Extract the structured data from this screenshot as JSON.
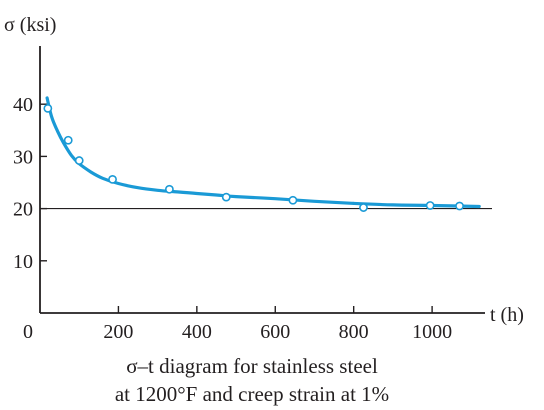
{
  "chart_data": {
    "type": "line",
    "caption": [
      "σ–t diagram for stainless steel",
      "at 1200°F and creep strain at 1%"
    ],
    "xlabel": "t (h)",
    "ylabel": "σ (ksi)",
    "xlim": [
      0,
      1140
    ],
    "ylim": [
      0,
      50
    ],
    "x_ticks": [
      0,
      200,
      400,
      600,
      800,
      1000
    ],
    "y_ticks": [
      10,
      20,
      30,
      40
    ],
    "x_tick_labels": [
      "0",
      "200",
      "400",
      "600",
      "800",
      "1000"
    ],
    "y_tick_labels": [
      "10",
      "20",
      "30",
      "40"
    ],
    "reference_line_y": 20,
    "grid": false,
    "legend": "none",
    "series": [
      {
        "kind": "points",
        "marker": "open-circle",
        "x": [
          20,
          72,
          100,
          185,
          330,
          475,
          645,
          825,
          995,
          1070
        ],
        "y": [
          39.2,
          33.1,
          29.2,
          25.6,
          23.7,
          22.2,
          21.6,
          20.2,
          20.6,
          20.5
        ]
      },
      {
        "kind": "fit-curve",
        "x": [
          18,
          30,
          45,
          60,
          80,
          100,
          130,
          160,
          200,
          250,
          300,
          350,
          400,
          450,
          500,
          600,
          700,
          800,
          900,
          1000,
          1120
        ],
        "y": [
          41.2,
          37.5,
          34.8,
          32.6,
          30.2,
          28.6,
          27.0,
          25.8,
          24.8,
          24.0,
          23.5,
          23.2,
          22.9,
          22.6,
          22.3,
          21.9,
          21.4,
          21.0,
          20.7,
          20.6,
          20.4
        ]
      }
    ],
    "colors": {
      "series": "#1a9ad6",
      "marker_fill": "#ffffff",
      "axis": "#231f20",
      "text": "#231f20"
    }
  }
}
